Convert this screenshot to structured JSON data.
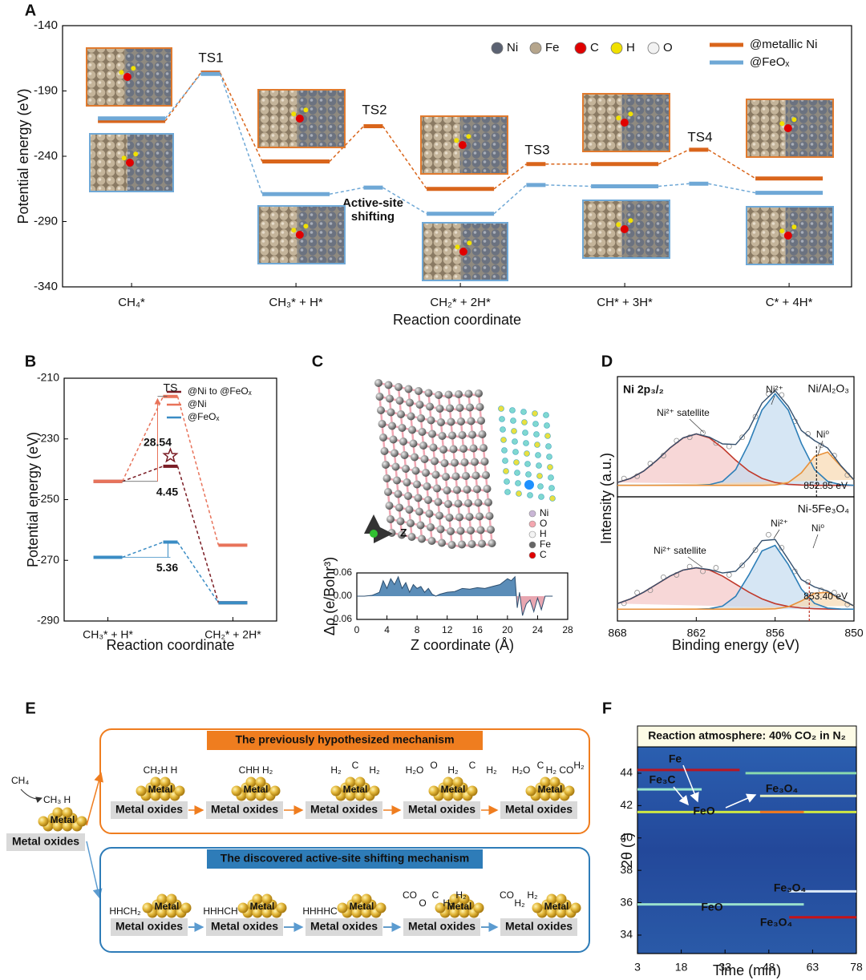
{
  "panel_labels": [
    "A",
    "B",
    "C",
    "D",
    "E",
    "F"
  ],
  "chart_data": [
    {
      "type": "energy_profile",
      "x": [
        0,
        0.48,
        1,
        1.47,
        2,
        2.46,
        3,
        3.45,
        4
      ],
      "xlim": [
        -0.42,
        4.38
      ],
      "xticks": [
        {
          "value": 0,
          "label": "CH₄*"
        },
        {
          "value": 1,
          "label": "CH₃* + H*"
        },
        {
          "value": 2,
          "label": "CH₂* + 2H*"
        },
        {
          "value": 3,
          "label": "CH* + 3H*"
        },
        {
          "value": 4,
          "label": "C* + 4H*"
        }
      ],
      "ylim": [
        -340,
        -140
      ],
      "yticks": [
        -340,
        -290,
        -240,
        -190,
        -140
      ],
      "xlabel": "Reaction coordinate",
      "ylabel": "Potential energy (eV)",
      "series": [
        {
          "name": "@metallic Ni",
          "color": "#d9651b",
          "values": [
            -213,
            -176,
            -244,
            -217,
            -265,
            -246,
            -246,
            -235,
            -257
          ]
        },
        {
          "name": "@FeOₓ",
          "color": "#6fa8d6",
          "values": [
            -211,
            -177,
            -269,
            -264,
            -284,
            -262,
            -263,
            -261,
            -268
          ]
        }
      ],
      "annotations": [
        "TS1",
        "TS2",
        "TS3",
        "TS4",
        "Active-site",
        "shifting"
      ],
      "atom_legend": [
        {
          "name": "Ni",
          "color": "#5b6272"
        },
        {
          "name": "Fe",
          "color": "#b5a58c"
        },
        {
          "name": "C",
          "color": "#e00000"
        },
        {
          "name": "H",
          "color": "#f0e000"
        },
        {
          "name": "O",
          "color": "#f2f2f2"
        }
      ]
    },
    {
      "type": "energy_profile",
      "x": [
        0,
        1,
        2
      ],
      "xlim": [
        -0.7,
        2.7
      ],
      "xticks": [
        {
          "value": 0,
          "label": "CH₃* + H*"
        },
        {
          "value": 2,
          "label": "CH₂* + 2H*"
        }
      ],
      "ylim": [
        -290,
        -210
      ],
      "yticks": [
        -290,
        -270,
        -250,
        -230,
        -210
      ],
      "xlabel": "Reaction coordinate",
      "ylabel": "Potential energy (eV)",
      "series": [
        {
          "name": "@Ni to @FeOₓ",
          "color": "#7a1c24",
          "values": [
            -244,
            -239,
            -284
          ]
        },
        {
          "name": "@Ni",
          "color": "#e8735a",
          "values": [
            -244,
            -216,
            -265
          ]
        },
        {
          "name": "@FeOₓ",
          "color": "#3a8cc4",
          "values": [
            -269,
            -264,
            -284
          ]
        }
      ],
      "annotations": [
        "TS",
        "28.54",
        "4.45",
        "5.36"
      ]
    },
    {
      "type": "area_line",
      "color": "#2d4f70",
      "positive_color": "#5b8db8",
      "negative_color": "#e8a6b0",
      "x": [
        0,
        1,
        2,
        3,
        3.5,
        4,
        4.5,
        5,
        5.5,
        6,
        6.5,
        7,
        7.5,
        8,
        8.5,
        9,
        9.5,
        10,
        10.5,
        11,
        12,
        13,
        14,
        15,
        16,
        17,
        18,
        19,
        20,
        20.5,
        21,
        21.3,
        21.6,
        22,
        22.5,
        23,
        23.5,
        24,
        24.5,
        25,
        26
      ],
      "values": [
        0,
        0,
        0.002,
        0.01,
        0.04,
        0.02,
        0.045,
        0.03,
        0.05,
        0.02,
        0.035,
        0.01,
        0.03,
        0.02,
        0.025,
        0.01,
        0.02,
        0.005,
        0,
        0.005,
        0.01,
        0.012,
        0.02,
        0.018,
        0.022,
        0.02,
        0.025,
        0.03,
        0.045,
        0.04,
        0.05,
        -0.03,
        0.01,
        -0.05,
        -0.02,
        -0.01,
        -0.04,
        -0.005,
        -0.035,
        0,
        0
      ],
      "xlim": [
        0,
        28
      ],
      "xticks": [
        0,
        4,
        8,
        12,
        16,
        20,
        24,
        28
      ],
      "ylim": [
        -0.06,
        0.06
      ],
      "yticks": [
        {
          "value": -0.06,
          "label": "-0.06"
        },
        {
          "value": 0,
          "label": "0.00"
        },
        {
          "value": 0.06,
          "label": "0.06"
        }
      ],
      "xlabel": "Z coordinate (Å)",
      "ylabel": "Δρ (e/Bohr³)",
      "axis_glyph": "Z",
      "atom_legend": [
        {
          "name": "Ni",
          "color": "#c9b6d6"
        },
        {
          "name": "O",
          "color": "#f4a7b0"
        },
        {
          "name": "H",
          "color": "#f4f4f4"
        },
        {
          "name": "Fe",
          "color": "#666666"
        },
        {
          "name": "C",
          "color": "#e00000"
        }
      ]
    },
    {
      "type": "xps",
      "title": "Ni/Al₂O₃",
      "xlim": [
        868,
        850
      ],
      "ylim": [
        0,
        1.05
      ],
      "ylabel": "Intensity (a.u.)",
      "x": [
        868,
        867,
        866,
        865,
        864,
        863,
        862,
        861,
        860,
        859,
        858,
        857,
        856,
        855,
        854,
        853,
        852,
        851,
        850
      ],
      "series": [
        {
          "color": "#c0392b",
          "fill": "#f4c6c6",
          "values": [
            0.125,
            0.161,
            0.225,
            0.319,
            0.427,
            0.515,
            0.55,
            0.515,
            0.427,
            0.319,
            0.225,
            0.161,
            0.125,
            0.109,
            0.103,
            0.1,
            0.1,
            0.1,
            0.1
          ]
        },
        {
          "color": "#2e7fb8",
          "fill": "#c4dcf0",
          "values": [
            0.1,
            0.1,
            0.1,
            0.1,
            0.1,
            0.1,
            0.1,
            0.106,
            0.135,
            0.238,
            0.466,
            0.758,
            0.9,
            0.758,
            0.466,
            0.238,
            0.135,
            0.106,
            0.1
          ]
        },
        {
          "color": "#e8913a",
          "fill": "#f8d9b0",
          "values": [
            0.1,
            0.1,
            0.1,
            0.1,
            0.1,
            0.1,
            0.1,
            0.1,
            0.1,
            0.1,
            0.1,
            0.1,
            0.103,
            0.124,
            0.21,
            0.353,
            0.391,
            0.267,
            0.148
          ]
        },
        {
          "color": "#34506e",
          "values": [
            0.125,
            0.161,
            0.225,
            0.319,
            0.427,
            0.515,
            0.55,
            0.521,
            0.462,
            0.457,
            0.591,
            0.819,
            0.928,
            0.791,
            0.579,
            0.491,
            0.426,
            0.273,
            0.148
          ]
        }
      ],
      "scatter": {
        "color": "#8a8a8a",
        "x": [
          867.5,
          866.5,
          865.5,
          864.5,
          863.5,
          862.5,
          861.5,
          860.5,
          859.5,
          858.5,
          857.5,
          856.5,
          855.5,
          854.5,
          853.5,
          852.5,
          851.5,
          850.5
        ],
        "values": [
          0.16,
          0.18,
          0.29,
          0.36,
          0.49,
          0.52,
          0.56,
          0.47,
          0.44,
          0.52,
          0.7,
          0.9,
          0.89,
          0.66,
          0.55,
          0.45,
          0.36,
          0.19
        ]
      },
      "annotations": [
        "Ni 2p₃/₂",
        "Ni²⁺ satellite",
        "Ni²⁺",
        "Ni⁰"
      ],
      "marker": {
        "value": 852.85,
        "label": "852.85 eV",
        "color": "#222222"
      }
    },
    {
      "type": "xps",
      "title": "Ni-5Fe₃O₄",
      "xlim": [
        868,
        850
      ],
      "ylim": [
        0,
        1.05
      ],
      "xticks": [
        868,
        862,
        856,
        850
      ],
      "xlabel": "Binding energy (eV)",
      "x": [
        868,
        867,
        866,
        865,
        864,
        863,
        862,
        861,
        860,
        859,
        858,
        857,
        856,
        855,
        854,
        853,
        852,
        851,
        850
      ],
      "series": [
        {
          "color": "#c0392b",
          "fill": "#f4c6c6",
          "values": [
            0.147,
            0.187,
            0.244,
            0.312,
            0.38,
            0.431,
            0.45,
            0.431,
            0.38,
            0.312,
            0.244,
            0.187,
            0.147,
            0.123,
            0.11,
            0.104,
            0.101,
            0.1,
            0.1
          ]
        },
        {
          "color": "#2e7fb8",
          "fill": "#c4dcf0",
          "values": [
            0.1,
            0.1,
            0.1,
            0.1,
            0.1,
            0.1,
            0.1,
            0.104,
            0.126,
            0.209,
            0.389,
            0.593,
            0.639,
            0.478,
            0.27,
            0.149,
            0.109,
            0.101,
            0.1
          ]
        },
        {
          "color": "#e8913a",
          "fill": "#f8d9b0",
          "values": [
            0.1,
            0.1,
            0.1,
            0.1,
            0.1,
            0.1,
            0.1,
            0.1,
            0.1,
            0.1,
            0.1,
            0.1,
            0.103,
            0.12,
            0.17,
            0.235,
            0.243,
            0.184,
            0.127
          ]
        },
        {
          "color": "#34506e",
          "values": [
            0.147,
            0.187,
            0.244,
            0.312,
            0.38,
            0.431,
            0.45,
            0.435,
            0.406,
            0.421,
            0.533,
            0.68,
            0.689,
            0.521,
            0.35,
            0.288,
            0.253,
            0.185,
            0.127
          ]
        }
      ],
      "scatter": {
        "color": "#8a8a8a",
        "x": [
          867.5,
          866.5,
          865.5,
          864.5,
          863.5,
          862.5,
          861.5,
          860.5,
          859.5,
          858.5,
          857.5,
          856.5,
          855.5,
          854.5,
          853.5,
          852.5,
          851.5,
          850.5
        ],
        "values": [
          0.15,
          0.24,
          0.26,
          0.37,
          0.39,
          0.46,
          0.42,
          0.45,
          0.39,
          0.47,
          0.6,
          0.73,
          0.62,
          0.42,
          0.33,
          0.26,
          0.24,
          0.14
        ]
      },
      "annotations": [
        "Ni²⁺ satellite",
        "Ni²⁺",
        "Ni⁰"
      ],
      "marker": {
        "value": 853.4,
        "label": "853.40 eV",
        "color": "#c0392b"
      }
    },
    {
      "type": "heatmap_bands",
      "title": "Reaction atmosphere: 40% CO₂ in N₂",
      "background": "#2a52a0",
      "xlim": [
        3,
        78
      ],
      "xticks": [
        3,
        18,
        33,
        48,
        63,
        78
      ],
      "ylim": [
        32.86,
        45.63
      ],
      "yticks": [
        34,
        36,
        38,
        40,
        42,
        44
      ],
      "xlabel": "Time (min)",
      "ylabel": "2θ (°)",
      "bands": [
        {
          "y": 44.2,
          "x": [
            3,
            38
          ],
          "color": "#c0141c"
        },
        {
          "y": 44.0,
          "x": [
            40,
            78
          ],
          "color": "#8fe0b0"
        },
        {
          "y": 43.0,
          "x": [
            3,
            25
          ],
          "color": "#a0f0d0"
        },
        {
          "y": 42.6,
          "x": [
            45,
            78
          ],
          "color": "#eef8c0"
        },
        {
          "y": 41.6,
          "x": [
            3,
            78
          ],
          "color": "#d8f040"
        },
        {
          "y": 41.6,
          "x": [
            45,
            60
          ],
          "color": "#f07020"
        },
        {
          "y": 36.7,
          "x": [
            55,
            78
          ],
          "color": "#e8f4ff"
        },
        {
          "y": 35.9,
          "x": [
            3,
            60
          ],
          "color": "#a0e8d0"
        },
        {
          "y": 35.1,
          "x": [
            55,
            78
          ],
          "color": "#d01010"
        }
      ],
      "annotations": [
        "Fe",
        "Fe₃C",
        "FeO",
        "Fe₃O₄",
        "Fe₃O₄",
        "FeO",
        "Fe₃O₄"
      ]
    }
  ],
  "diagram": {
    "left": {
      "reactant": "CH₄",
      "adsorbate": "CH₃ H",
      "metal": "Metal",
      "support": "Metal oxides"
    },
    "mechanisms": [
      {
        "title": "The previously hypothesized mechanism",
        "color": "#ef7d1f",
        "steps": [
          {
            "items": [
              {
                "text": "CH₂H H"
              }
            ],
            "metal": "Metal",
            "support": "Metal oxides"
          },
          {
            "items": [
              {
                "text": "CHH H₂"
              }
            ],
            "metal": "Metal",
            "support": "Metal oxides"
          },
          {
            "items": [
              {
                "text": "H₂"
              },
              {
                "text": "C"
              },
              {
                "text": "H₂"
              }
            ],
            "metal": "Metal",
            "support": "Metal oxides"
          },
          {
            "items": [
              {
                "text": "H₂O",
                "color": "#d01c1c"
              },
              {
                "text": "O",
                "color": "#d01c1c"
              },
              {
                "text": "H₂",
                "color": "#d01c1c"
              },
              {
                "text": "C"
              },
              {
                "text": "H₂"
              }
            ],
            "metal": "Metal",
            "support": "Metal oxides"
          },
          {
            "items": [
              {
                "text": "H₂O",
                "color": "#d01c1c"
              },
              {
                "text": "C",
                "color": "#d01c1c"
              },
              {
                "text": "H₂ CO",
                "color": "#d01c1c"
              },
              {
                "text": "H₂"
              }
            ],
            "metal": "Metal",
            "support": "Metal oxides"
          }
        ]
      },
      {
        "title": "The discovered active-site shifting mechanism",
        "color": "#2e7cb8",
        "steps": [
          {
            "items": [
              {
                "text": "HHCH₂"
              }
            ],
            "metal": "Metal",
            "support": "Metal oxides"
          },
          {
            "items": [
              {
                "text": "HHHCH"
              }
            ],
            "metal": "Metal",
            "support": "Metal oxides"
          },
          {
            "items": [
              {
                "text": "HHHHC"
              }
            ],
            "metal": "Metal",
            "support": "Metal oxides"
          },
          {
            "items": [
              {
                "text": "CO",
                "color": "#d01c1c"
              },
              {
                "text": "O",
                "color": "#d01c1c"
              },
              {
                "text": "C",
                "color": "#d01c1c"
              },
              {
                "text": "H₂"
              },
              {
                "text": "H₂"
              }
            ],
            "metal": "Metal",
            "support": "Metal oxides"
          },
          {
            "items": [
              {
                "text": "CO"
              },
              {
                "text": "H₂"
              },
              {
                "text": "H₂"
              }
            ],
            "metal": "Metal",
            "support": "Metal oxides"
          }
        ]
      }
    ]
  }
}
